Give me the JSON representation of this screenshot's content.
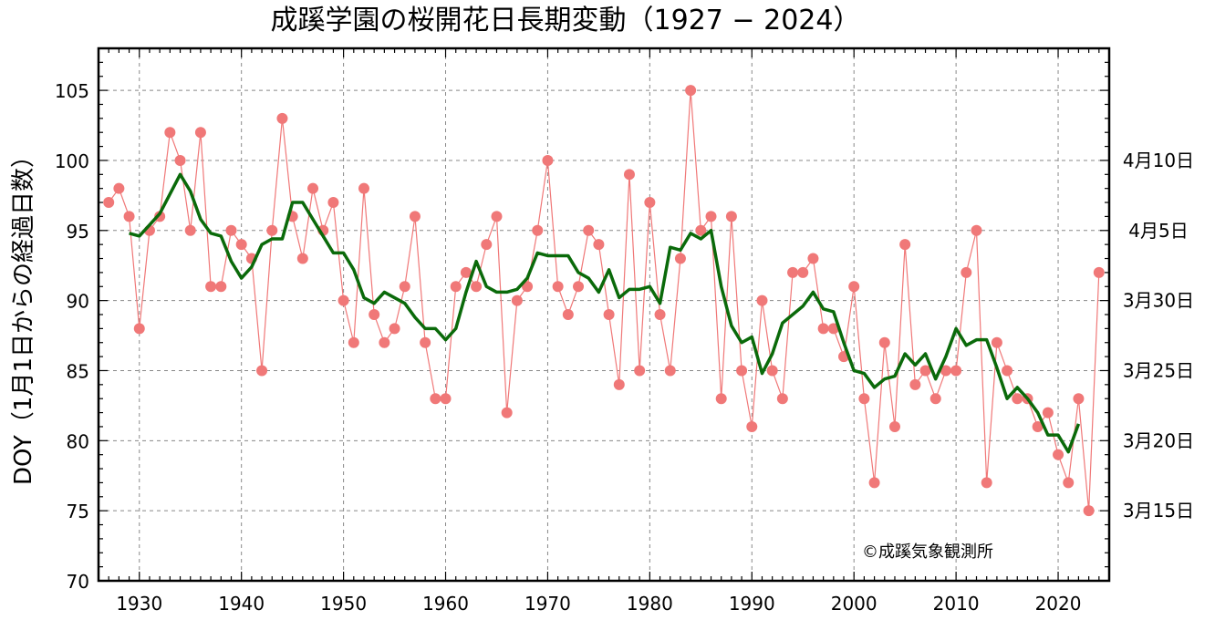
{
  "chart_data": {
    "type": "line",
    "title": "成蹊学園の桜開花日長期変動（1927 − 2024）",
    "ylabel": "DOY（1月1日からの経過日数）",
    "xlabel": "",
    "xlim": [
      1926,
      2025
    ],
    "ylim": [
      70,
      108
    ],
    "x_ticks": [
      1930,
      1940,
      1950,
      1960,
      1970,
      1980,
      1990,
      2000,
      2010,
      2020
    ],
    "y_ticks": [
      70,
      75,
      80,
      85,
      90,
      95,
      100,
      105
    ],
    "right_axis_labels": [
      {
        "value": 100,
        "label": "4月10日"
      },
      {
        "value": 95,
        "label": "4月5日"
      },
      {
        "value": 90,
        "label": "3月30日"
      },
      {
        "value": 85,
        "label": "3月25日"
      },
      {
        "value": 80,
        "label": "3月20日"
      },
      {
        "value": 75,
        "label": "3月15日"
      }
    ],
    "grid": true,
    "credit": "©成蹊気象観測所",
    "colors": {
      "points": "#f07878",
      "thin_line": "#f07878",
      "smooth_line": "#0a6a0a",
      "grid": "#888888"
    },
    "series": [
      {
        "style": "points+thin-line",
        "x": [
          1927,
          1928,
          1929,
          1930,
          1931,
          1932,
          1933,
          1934,
          1935,
          1936,
          1937,
          1938,
          1939,
          1940,
          1941,
          1942,
          1943,
          1944,
          1945,
          1946,
          1947,
          1948,
          1949,
          1950,
          1951,
          1952,
          1953,
          1954,
          1955,
          1956,
          1957,
          1958,
          1959,
          1960,
          1961,
          1962,
          1963,
          1964,
          1965,
          1966,
          1967,
          1968,
          1969,
          1970,
          1971,
          1972,
          1973,
          1974,
          1975,
          1976,
          1977,
          1978,
          1979,
          1980,
          1981,
          1982,
          1983,
          1984,
          1985,
          1986,
          1987,
          1988,
          1989,
          1990,
          1991,
          1992,
          1993,
          1994,
          1995,
          1996,
          1997,
          1998,
          1999,
          2000,
          2001,
          2002,
          2003,
          2004,
          2005,
          2006,
          2007,
          2008,
          2009,
          2010,
          2011,
          2012,
          2013,
          2014,
          2015,
          2016,
          2017,
          2018,
          2019,
          2020,
          2021,
          2022,
          2023,
          2024
        ],
        "y": [
          97,
          98,
          96,
          88,
          95,
          96,
          102,
          100,
          95,
          102,
          91,
          91,
          95,
          94,
          93,
          85,
          95,
          103,
          96,
          93,
          98,
          95,
          97,
          90,
          87,
          98,
          89,
          87,
          88,
          91,
          96,
          87,
          83,
          83,
          91,
          92,
          91,
          94,
          96,
          82,
          90,
          91,
          95,
          100,
          91,
          89,
          91,
          95,
          94,
          89,
          84,
          99,
          85,
          97,
          89,
          85,
          93,
          105,
          95,
          96,
          83,
          96,
          85,
          81,
          90,
          85,
          83,
          92,
          92,
          93,
          88,
          88,
          86,
          91,
          83,
          77,
          87,
          81,
          94,
          84,
          85,
          83,
          85,
          85,
          92,
          95,
          77,
          87,
          85,
          83,
          83,
          81,
          82,
          79,
          77,
          83,
          75,
          92
        ]
      },
      {
        "style": "smoothed-line",
        "x": [
          1929,
          1930,
          1931,
          1932,
          1933,
          1934,
          1935,
          1936,
          1937,
          1938,
          1939,
          1940,
          1941,
          1942,
          1943,
          1944,
          1945,
          1946,
          1947,
          1948,
          1949,
          1950,
          1951,
          1952,
          1953,
          1954,
          1955,
          1956,
          1957,
          1958,
          1959,
          1960,
          1961,
          1962,
          1963,
          1964,
          1965,
          1966,
          1967,
          1968,
          1969,
          1970,
          1971,
          1972,
          1973,
          1974,
          1975,
          1976,
          1977,
          1978,
          1979,
          1980,
          1981,
          1982,
          1983,
          1984,
          1985,
          1986,
          1987,
          1988,
          1989,
          1990,
          1991,
          1992,
          1993,
          1994,
          1995,
          1996,
          1997,
          1998,
          1999,
          2000,
          2001,
          2002,
          2003,
          2004,
          2005,
          2006,
          2007,
          2008,
          2009,
          2010,
          2011,
          2012,
          2013,
          2014,
          2015,
          2016,
          2017,
          2018,
          2019,
          2020,
          2021,
          2022
        ],
        "y": [
          94.8,
          94.6,
          95.4,
          96.2,
          97.6,
          99.0,
          97.8,
          95.8,
          94.8,
          94.6,
          92.8,
          91.6,
          92.4,
          94.0,
          94.4,
          94.4,
          97.0,
          97.0,
          95.8,
          94.6,
          93.4,
          93.4,
          92.2,
          90.2,
          89.8,
          90.6,
          90.2,
          89.8,
          88.8,
          88.0,
          88.0,
          87.2,
          88.0,
          90.6,
          92.8,
          91.0,
          90.6,
          90.6,
          90.8,
          91.6,
          93.4,
          93.2,
          93.2,
          93.2,
          92.0,
          91.6,
          90.6,
          92.2,
          90.2,
          90.8,
          90.8,
          91.0,
          89.8,
          93.8,
          93.6,
          94.8,
          94.4,
          95.0,
          91.0,
          88.2,
          87.0,
          87.4,
          84.8,
          86.2,
          88.4,
          89.0,
          89.6,
          90.6,
          89.4,
          89.2,
          87.0,
          85.0,
          84.8,
          83.8,
          84.4,
          84.6,
          86.2,
          85.4,
          86.2,
          84.4,
          86.0,
          88.0,
          86.8,
          87.2,
          87.2,
          85.2,
          83.0,
          83.8,
          83.0,
          82.0,
          80.4,
          80.4,
          79.2,
          81.2
        ]
      }
    ]
  }
}
